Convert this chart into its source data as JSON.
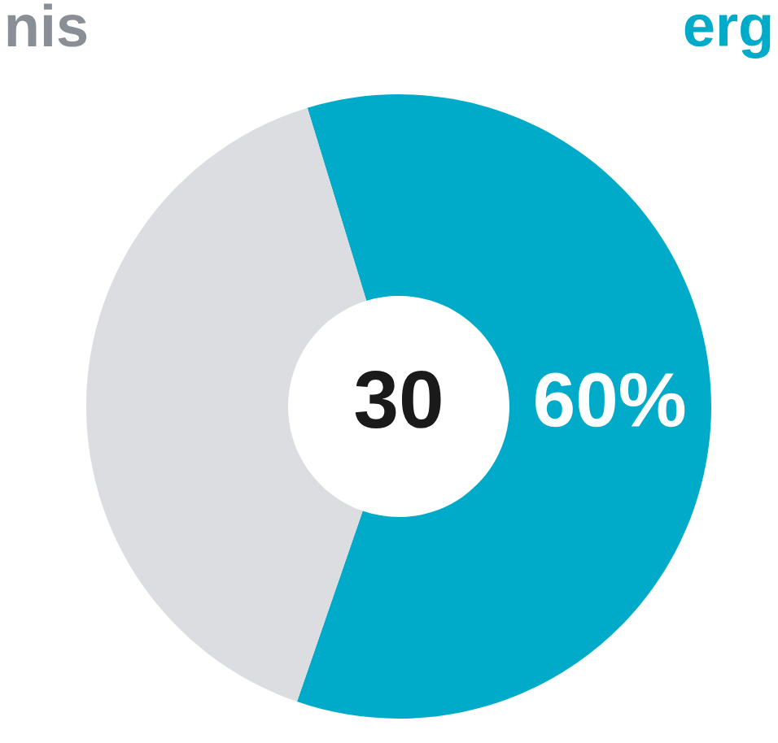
{
  "chart_data": {
    "type": "donut",
    "categories": [
      "erg",
      "nis"
    ],
    "values": [
      60,
      40
    ],
    "colors": [
      "#00abc9",
      "#dcdde1"
    ],
    "value_labels": [
      "60%",
      null
    ],
    "annotations": [
      "30"
    ],
    "legend": false
  }
}
